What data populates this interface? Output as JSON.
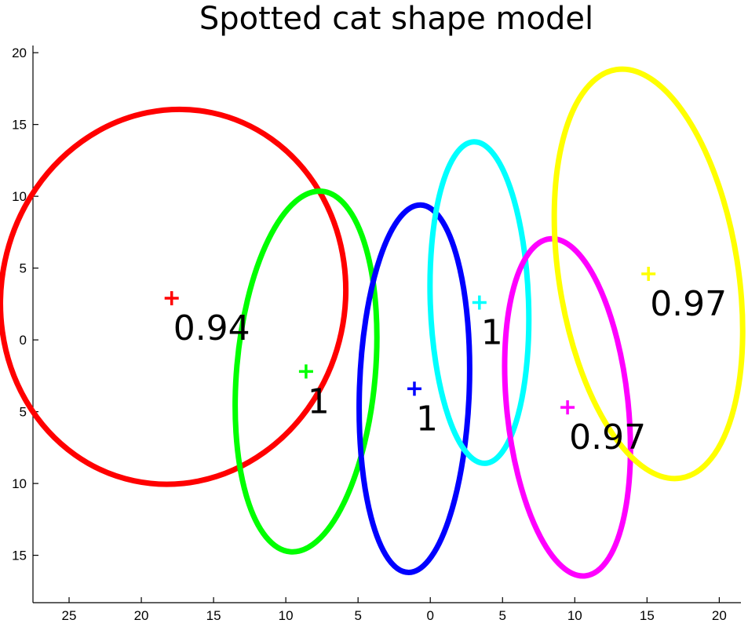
{
  "chart_data": {
    "type": "scatter",
    "title": "Spotted cat shape model",
    "xlabel": "",
    "ylabel": "",
    "xlim": [
      -27.5,
      21.5
    ],
    "ylim": [
      -18.3,
      20.5
    ],
    "x_direction": "reversed",
    "grid": false,
    "x_ticks": [
      {
        "value": -25,
        "label": "25"
      },
      {
        "value": -20,
        "label": "20"
      },
      {
        "value": -15,
        "label": "15"
      },
      {
        "value": -10,
        "label": "10"
      },
      {
        "value": -5,
        "label": "5"
      },
      {
        "value": 0,
        "label": "0"
      },
      {
        "value": 5,
        "label": "5"
      },
      {
        "value": 10,
        "label": "10"
      },
      {
        "value": 15,
        "label": "15"
      },
      {
        "value": 20,
        "label": "20"
      }
    ],
    "y_ticks": [
      {
        "value": 20,
        "label": "20"
      },
      {
        "value": 15,
        "label": "15"
      },
      {
        "value": 10,
        "label": "10"
      },
      {
        "value": 5,
        "label": "5"
      },
      {
        "value": 0,
        "label": "0"
      },
      {
        "value": -5,
        "label": "5"
      },
      {
        "value": -10,
        "label": "10"
      },
      {
        "value": -15,
        "label": "15"
      }
    ],
    "parts": [
      {
        "color": "#ff0000",
        "center_x": -17.9,
        "center_y": 2.9,
        "label": "0.94",
        "ellipse": {
          "cx": -17.8,
          "cy": 3.0,
          "rx": 11.9,
          "ry": 13.1,
          "rotation": 12
        }
      },
      {
        "color": "#00ff00",
        "center_x": -8.6,
        "center_y": -2.2,
        "label": "1",
        "ellipse": {
          "cx": -8.6,
          "cy": -2.2,
          "rx": 4.8,
          "ry": 12.6,
          "rotation": 5
        }
      },
      {
        "color": "#0000ff",
        "center_x": -1.1,
        "center_y": -3.4,
        "label": "1",
        "ellipse": {
          "cx": -1.1,
          "cy": -3.4,
          "rx": 3.8,
          "ry": 12.8,
          "rotation": 2
        }
      },
      {
        "color": "#00ffff",
        "center_x": 3.4,
        "center_y": 2.6,
        "label": "1",
        "ellipse": {
          "cx": 3.4,
          "cy": 2.6,
          "rx": 3.4,
          "ry": 11.2,
          "rotation": -2
        }
      },
      {
        "color": "#ff00ff",
        "center_x": 9.5,
        "center_y": -4.7,
        "label": "0.97",
        "ellipse": {
          "cx": 9.5,
          "cy": -4.7,
          "rx": 4.2,
          "ry": 11.8,
          "rotation": -6
        }
      },
      {
        "color": "#ffff00",
        "center_x": 15.1,
        "center_y": 4.6,
        "label": "0.97",
        "ellipse": {
          "cx": 15.1,
          "cy": 4.6,
          "rx": 6.2,
          "ry": 14.4,
          "rotation": -9
        }
      }
    ]
  }
}
